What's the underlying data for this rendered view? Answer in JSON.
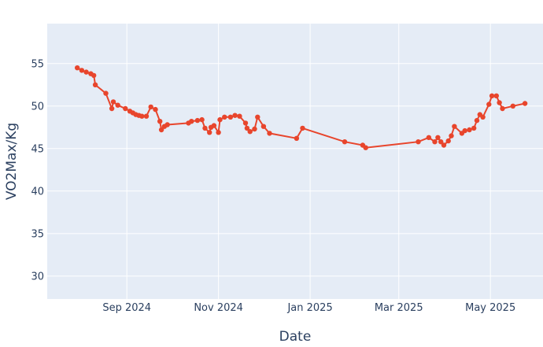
{
  "chart_data": {
    "type": "line",
    "xlabel": "Date",
    "ylabel": "VO2Max/Kg",
    "xlim": [
      "2024-07-10",
      "2025-06-05"
    ],
    "ylim": [
      27.3,
      59.7
    ],
    "grid": true,
    "x_ticks": [
      {
        "date": "2024-09-01",
        "label": "Sep 2024"
      },
      {
        "date": "2024-11-01",
        "label": "Nov 2024"
      },
      {
        "date": "2025-01-01",
        "label": "Jan 2025"
      },
      {
        "date": "2025-03-01",
        "label": "Mar 2025"
      },
      {
        "date": "2025-05-01",
        "label": "May 2025"
      }
    ],
    "y_ticks": [
      30,
      35,
      40,
      45,
      50,
      55
    ],
    "colors": {
      "line": "#e8452c",
      "plot_bg": "#e5ecf6",
      "grid": "#ffffff",
      "text": "#2a3f5f"
    },
    "series": [
      {
        "points": [
          [
            "2024-07-30",
            54.5
          ],
          [
            "2024-08-02",
            54.2
          ],
          [
            "2024-08-05",
            54.0
          ],
          [
            "2024-08-08",
            53.8
          ],
          [
            "2024-08-10",
            53.6
          ],
          [
            "2024-08-11",
            52.5
          ],
          [
            "2024-08-18",
            51.5
          ],
          [
            "2024-08-22",
            49.7
          ],
          [
            "2024-08-23",
            50.5
          ],
          [
            "2024-08-26",
            50.1
          ],
          [
            "2024-08-31",
            49.7
          ],
          [
            "2024-09-03",
            49.4
          ],
          [
            "2024-09-05",
            49.2
          ],
          [
            "2024-09-07",
            49.0
          ],
          [
            "2024-09-09",
            48.9
          ],
          [
            "2024-09-11",
            48.8
          ],
          [
            "2024-09-14",
            48.8
          ],
          [
            "2024-09-17",
            49.9
          ],
          [
            "2024-09-20",
            49.6
          ],
          [
            "2024-09-23",
            48.2
          ],
          [
            "2024-09-24",
            47.2
          ],
          [
            "2024-09-26",
            47.6
          ],
          [
            "2024-09-28",
            47.8
          ],
          [
            "2024-10-12",
            48.0
          ],
          [
            "2024-10-14",
            48.2
          ],
          [
            "2024-10-18",
            48.3
          ],
          [
            "2024-10-21",
            48.4
          ],
          [
            "2024-10-23",
            47.4
          ],
          [
            "2024-10-26",
            46.9
          ],
          [
            "2024-10-27",
            47.5
          ],
          [
            "2024-10-29",
            47.7
          ],
          [
            "2024-11-01",
            46.9
          ],
          [
            "2024-11-02",
            48.4
          ],
          [
            "2024-11-05",
            48.7
          ],
          [
            "2024-11-09",
            48.7
          ],
          [
            "2024-11-12",
            48.9
          ],
          [
            "2024-11-15",
            48.8
          ],
          [
            "2024-11-19",
            48.0
          ],
          [
            "2024-11-20",
            47.4
          ],
          [
            "2024-11-22",
            47.0
          ],
          [
            "2024-11-25",
            47.3
          ],
          [
            "2024-11-27",
            48.7
          ],
          [
            "2024-12-01",
            47.6
          ],
          [
            "2024-12-05",
            46.8
          ],
          [
            "2024-12-23",
            46.2
          ],
          [
            "2024-12-27",
            47.4
          ],
          [
            "2025-01-24",
            45.8
          ],
          [
            "2025-02-05",
            45.4
          ],
          [
            "2025-02-07",
            45.1
          ],
          [
            "2025-03-14",
            45.8
          ],
          [
            "2025-03-21",
            46.3
          ],
          [
            "2025-03-25",
            45.8
          ],
          [
            "2025-03-27",
            46.3
          ],
          [
            "2025-03-29",
            45.8
          ],
          [
            "2025-03-31",
            45.4
          ],
          [
            "2025-04-03",
            45.9
          ],
          [
            "2025-04-05",
            46.5
          ],
          [
            "2025-04-07",
            47.6
          ],
          [
            "2025-04-12",
            46.8
          ],
          [
            "2025-04-14",
            47.1
          ],
          [
            "2025-04-17",
            47.2
          ],
          [
            "2025-04-20",
            47.4
          ],
          [
            "2025-04-22",
            48.3
          ],
          [
            "2025-04-24",
            49.0
          ],
          [
            "2025-04-26",
            48.7
          ],
          [
            "2025-04-30",
            50.2
          ],
          [
            "2025-05-02",
            51.2
          ],
          [
            "2025-05-05",
            51.2
          ],
          [
            "2025-05-07",
            50.4
          ],
          [
            "2025-05-09",
            49.7
          ],
          [
            "2025-05-16",
            50.0
          ],
          [
            "2025-05-24",
            50.3
          ]
        ]
      }
    ]
  }
}
